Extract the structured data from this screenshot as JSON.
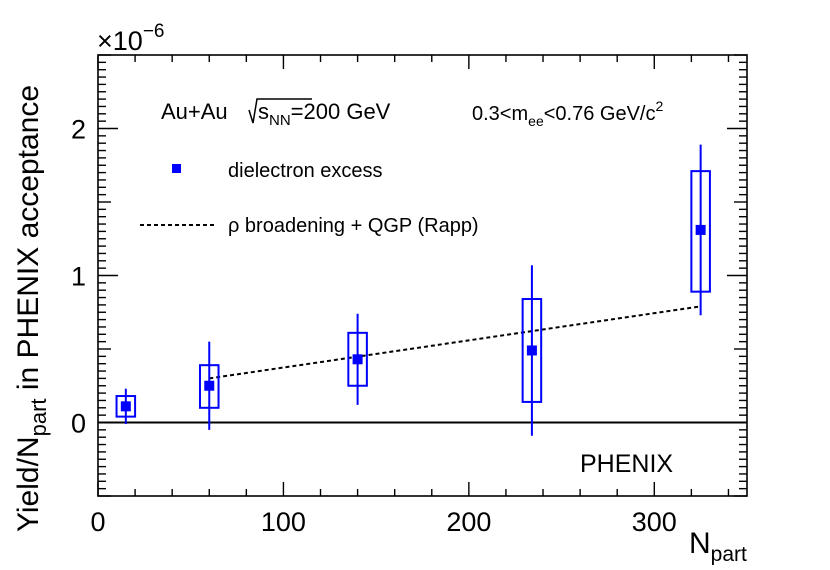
{
  "chart_data": {
    "type": "scatter",
    "title": "",
    "xlabel": "N",
    "xlabel_sub": "part",
    "ylabel_parts": [
      "Yield/N",
      "part",
      " in PHENIX acceptance"
    ],
    "y_multiplier": [
      "×10",
      "−6"
    ],
    "xlim": [
      0,
      350
    ],
    "ylim": [
      -0.5,
      2.5
    ],
    "x_ticks": [
      0,
      100,
      200,
      300
    ],
    "x_tick_labels": [
      "0",
      "100",
      "200",
      "300"
    ],
    "y_ticks": [
      0,
      1,
      2
    ],
    "y_tick_labels": [
      "0",
      "1",
      "2"
    ],
    "series": [
      {
        "name": "dielectron excess",
        "kind": "points",
        "color": "#0000ff",
        "x": [
          15,
          60,
          140,
          234,
          325
        ],
        "y": [
          0.11,
          0.25,
          0.43,
          0.49,
          1.31
        ],
        "stat_err": [
          0.12,
          0.3,
          0.31,
          0.58,
          0.58
        ],
        "sys_low": [
          0.04,
          0.1,
          0.25,
          0.14,
          0.89
        ],
        "sys_high": [
          0.18,
          0.39,
          0.61,
          0.84,
          1.71
        ],
        "box_half_width": 5
      },
      {
        "name": "ρ broadening + QGP (Rapp)",
        "kind": "line",
        "style": "dashed",
        "color": "#000000",
        "x": [
          60,
          325
        ],
        "y": [
          0.3,
          0.79
        ]
      }
    ],
    "annotations": {
      "system": "Au+Au",
      "energy_s": "s",
      "energy_sub": "NN",
      "energy_value": "=200 GeV",
      "mass_range_prefix": "0.3<m",
      "mass_range_sub": "ee",
      "mass_range_mid": "<0.76 GeV/c",
      "mass_range_sup": "2",
      "experiment": "PHENIX"
    },
    "legend_position": "top-left"
  }
}
